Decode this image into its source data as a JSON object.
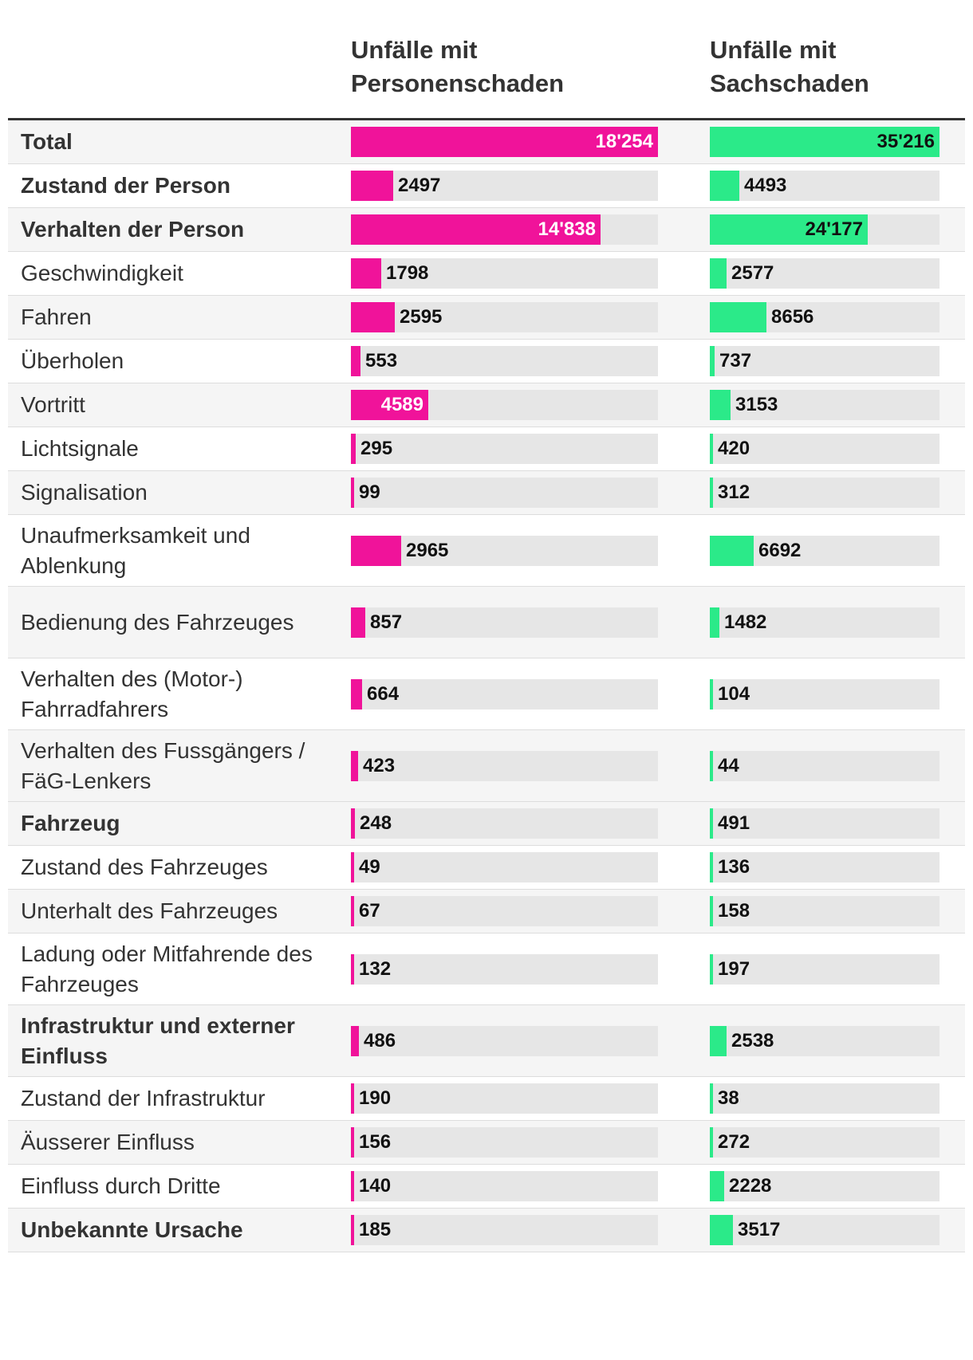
{
  "chart_data": {
    "type": "table",
    "columns": [
      "",
      "Unfälle mit Personenschaden",
      "Unfälle mit Sachschaden"
    ],
    "colors": {
      "personenschaden": "#f0139a",
      "sachschaden": "#2bea89"
    },
    "scale_max": {
      "personenschaden": 18254,
      "sachschaden": 35216
    },
    "rows": [
      {
        "label": "Total",
        "bold": true,
        "personen": 18254,
        "sach": 35216,
        "personen_text": "18'254",
        "sach_text": "35'216"
      },
      {
        "label": "Zustand der Person",
        "bold": true,
        "personen": 2497,
        "sach": 4493,
        "personen_text": "2497",
        "sach_text": "4493"
      },
      {
        "label": "Verhalten der Person",
        "bold": true,
        "personen": 14838,
        "sach": 24177,
        "personen_text": "14'838",
        "sach_text": "24'177"
      },
      {
        "label": "Geschwindigkeit",
        "bold": false,
        "personen": 1798,
        "sach": 2577,
        "personen_text": "1798",
        "sach_text": "2577"
      },
      {
        "label": "Fahren",
        "bold": false,
        "personen": 2595,
        "sach": 8656,
        "personen_text": "2595",
        "sach_text": "8656"
      },
      {
        "label": "Überholen",
        "bold": false,
        "personen": 553,
        "sach": 737,
        "personen_text": "553",
        "sach_text": "737"
      },
      {
        "label": "Vortritt",
        "bold": false,
        "personen": 4589,
        "sach": 3153,
        "personen_text": "4589",
        "sach_text": "3153"
      },
      {
        "label": "Lichtsignale",
        "bold": false,
        "personen": 295,
        "sach": 420,
        "personen_text": "295",
        "sach_text": "420"
      },
      {
        "label": "Signalisation",
        "bold": false,
        "personen": 99,
        "sach": 312,
        "personen_text": "99",
        "sach_text": "312"
      },
      {
        "label": "Unaufmerksamkeit und Ablenkung",
        "bold": false,
        "personen": 2965,
        "sach": 6692,
        "personen_text": "2965",
        "sach_text": "6692"
      },
      {
        "label": "Bedienung des Fahrzeuges",
        "bold": false,
        "personen": 857,
        "sach": 1482,
        "personen_text": "857",
        "sach_text": "1482"
      },
      {
        "label": "Verhalten des (Motor-) Fahrradfahrers",
        "bold": false,
        "personen": 664,
        "sach": 104,
        "personen_text": "664",
        "sach_text": "104"
      },
      {
        "label": "Verhalten des Fussgängers / FäG-Lenkers",
        "bold": false,
        "personen": 423,
        "sach": 44,
        "personen_text": "423",
        "sach_text": "44"
      },
      {
        "label": "Fahrzeug",
        "bold": true,
        "personen": 248,
        "sach": 491,
        "personen_text": "248",
        "sach_text": "491"
      },
      {
        "label": "Zustand des Fahrzeuges",
        "bold": false,
        "personen": 49,
        "sach": 136,
        "personen_text": "49",
        "sach_text": "136"
      },
      {
        "label": "Unterhalt des Fahrzeuges",
        "bold": false,
        "personen": 67,
        "sach": 158,
        "personen_text": "67",
        "sach_text": "158"
      },
      {
        "label": "Ladung oder Mitfahrende des Fahrzeuges",
        "bold": false,
        "personen": 132,
        "sach": 197,
        "personen_text": "132",
        "sach_text": "197"
      },
      {
        "label": "Infrastruktur und externer Einfluss",
        "bold": true,
        "personen": 486,
        "sach": 2538,
        "personen_text": "486",
        "sach_text": "2538"
      },
      {
        "label": "Zustand der Infrastruktur",
        "bold": false,
        "personen": 190,
        "sach": 38,
        "personen_text": "190",
        "sach_text": "38"
      },
      {
        "label": "Äusserer Einfluss",
        "bold": false,
        "personen": 156,
        "sach": 272,
        "personen_text": "156",
        "sach_text": "272"
      },
      {
        "label": "Einfluss durch Dritte",
        "bold": false,
        "personen": 140,
        "sach": 2228,
        "personen_text": "140",
        "sach_text": "2228"
      },
      {
        "label": "Unbekannte Ursache",
        "bold": true,
        "personen": 185,
        "sach": 3517,
        "personen_text": "185",
        "sach_text": "3517"
      }
    ]
  }
}
